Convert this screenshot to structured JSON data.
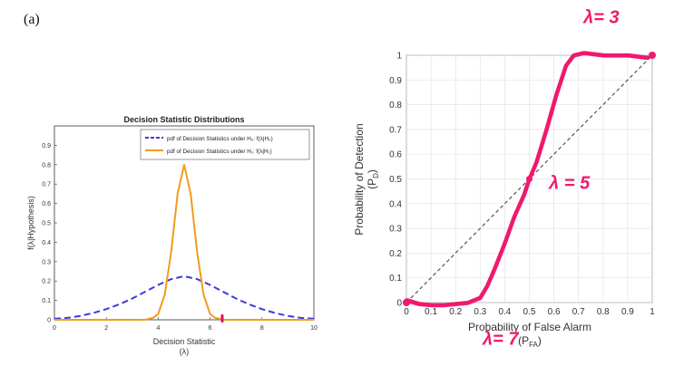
{
  "figure_label": "(a)",
  "chart_data": [
    {
      "type": "line",
      "title": "Decision Statistic Distributions",
      "xlabel": "Decision Statistic",
      "xlabel_sub": "(λ)",
      "ylabel": "f(λ|Hypothesis)",
      "xlim": [
        0,
        10
      ],
      "ylim": [
        0,
        1
      ],
      "xticks": [
        "0",
        "2",
        "4",
        "6",
        "8",
        "10"
      ],
      "yticks": [
        "0",
        "0.1",
        "0.2",
        "0.3",
        "0.4",
        "0.5",
        "0.6",
        "0.7",
        "0.8",
        "0.9"
      ],
      "grid": false,
      "legend_position": "top-right",
      "series": [
        {
          "name": "pdf of Decision Statistics under H₀: f(λ|H₀)",
          "color": "#3b3bdc",
          "style": "dashed",
          "x": [
            0,
            0.5,
            1,
            1.5,
            2,
            2.5,
            3,
            3.5,
            4,
            4.5,
            5,
            5.5,
            6,
            6.5,
            7,
            7.5,
            8,
            8.5,
            9,
            9.5,
            10
          ],
          "y": [
            0.005,
            0.01,
            0.02,
            0.035,
            0.055,
            0.08,
            0.11,
            0.145,
            0.18,
            0.21,
            0.225,
            0.21,
            0.18,
            0.145,
            0.11,
            0.08,
            0.055,
            0.035,
            0.02,
            0.01,
            0.005
          ]
        },
        {
          "name": "pdf of Decision Statistics under H₁: f(λ|H₁)",
          "color": "#f29b1d",
          "style": "solid",
          "x": [
            0,
            3,
            3.5,
            3.8,
            4,
            4.25,
            4.5,
            4.75,
            5,
            5.25,
            5.5,
            5.75,
            6,
            6.2,
            6.5,
            7,
            10
          ],
          "y": [
            0,
            0,
            0.0005,
            0.01,
            0.03,
            0.13,
            0.35,
            0.65,
            0.8,
            0.65,
            0.35,
            0.13,
            0.03,
            0.01,
            0.0005,
            0,
            0
          ]
        }
      ]
    },
    {
      "type": "line",
      "title": "",
      "xlabel": "Probability of False Alarm",
      "xlabel_suffix": "(P",
      "xlabel_suffix_sub": "FA",
      "xlabel_suffix_end": ")",
      "ylabel": "Probability of Detection",
      "ylabel_sub_prefix": "(P",
      "ylabel_sub": "D",
      "ylabel_sub_end": ")",
      "xlim": [
        0,
        1
      ],
      "ylim": [
        0,
        1
      ],
      "xticks": [
        "0",
        "0.1",
        "0.2",
        "0.3",
        "0.4",
        "0.5",
        "0.6",
        "0.7",
        "0.8",
        "0.9",
        "1"
      ],
      "yticks": [
        "0",
        "0.1",
        "0.2",
        "0.3",
        "0.4",
        "0.5",
        "0.6",
        "0.7",
        "0.8",
        "0.9",
        "1"
      ],
      "grid": true,
      "series": [
        {
          "color": "#555555",
          "style": "dashed",
          "x": [
            0,
            1
          ],
          "y": [
            0,
            1
          ]
        },
        {
          "color": "#f0196e",
          "style": "handwritten",
          "x": [
            0,
            0.05,
            0.1,
            0.15,
            0.2,
            0.25,
            0.3,
            0.33,
            0.36,
            0.4,
            0.44,
            0.48,
            0.5,
            0.53,
            0.57,
            0.61,
            0.65,
            0.68,
            0.72,
            0.8,
            0.9,
            0.98
          ],
          "y": [
            0.01,
            -0.005,
            -0.01,
            -0.01,
            -0.005,
            0.0,
            0.02,
            0.07,
            0.14,
            0.24,
            0.35,
            0.44,
            0.5,
            0.57,
            0.7,
            0.84,
            0.96,
            1.0,
            1.01,
            1.0,
            1.0,
            0.99
          ]
        }
      ],
      "annotations": [
        {
          "text": "λ= 3",
          "x": 0.72,
          "y": 1.13
        },
        {
          "text": "λ = 5",
          "x": 0.58,
          "y": 0.46
        },
        {
          "text": "λ= 7",
          "x": 0.31,
          "y": -0.17
        }
      ]
    }
  ]
}
